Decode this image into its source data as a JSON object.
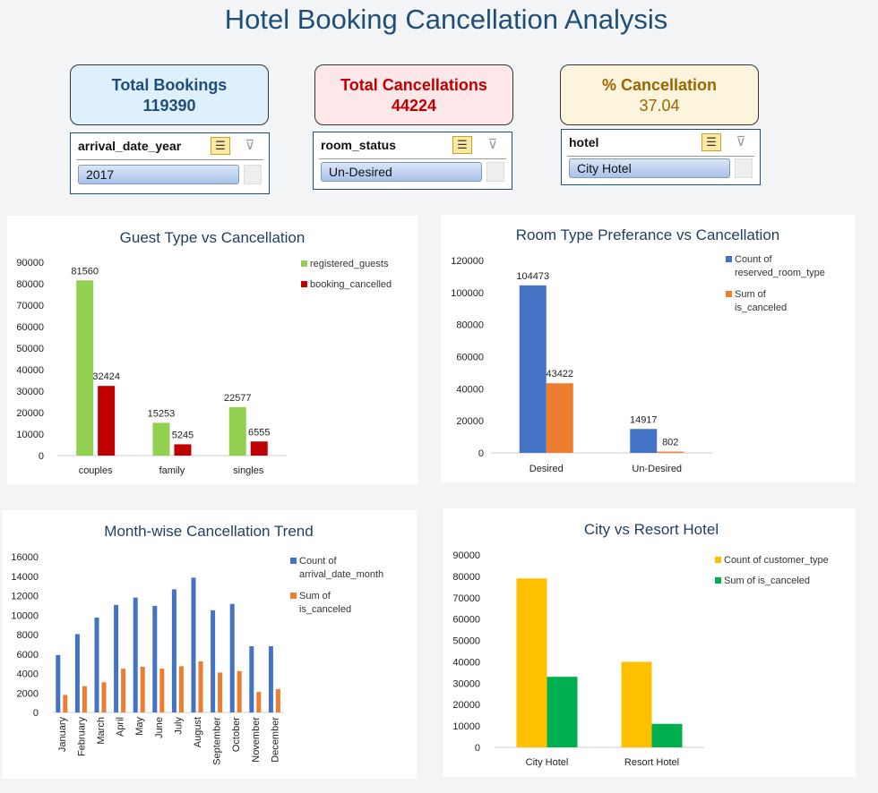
{
  "title": "Hotel Booking Cancellation Analysis",
  "kpis": {
    "total_bookings": {
      "label": "Total Bookings",
      "value": "119390",
      "color": "#1f4e79",
      "bg": "#ddf0fc"
    },
    "total_cancellations": {
      "label": "Total Cancellations",
      "value": "44224",
      "color": "#c00000",
      "bg": "#fde7e9"
    },
    "pct_cancellation": {
      "label": "% Cancellation",
      "value": "37.04",
      "color": "#9c6500",
      "bg": "#fdf4dd"
    }
  },
  "slicers": {
    "year": {
      "header": "arrival_date_year",
      "selected": "2017"
    },
    "room": {
      "header": "room_status",
      "selected": "Un-Desired"
    },
    "hotel": {
      "header": "hotel",
      "selected": "City Hotel"
    }
  },
  "icons": {
    "multiselect": "multi-select-icon",
    "clear_filter": "clear-filter-icon"
  },
  "chart_data": [
    {
      "id": "guest",
      "type": "bar",
      "title": "Guest Type vs Cancellation",
      "categories": [
        "couples",
        "family",
        "singles"
      ],
      "series": [
        {
          "name": "registered_guests",
          "values": [
            81560,
            15253,
            22577
          ],
          "color": "#92d050"
        },
        {
          "name": "booking_cancelled",
          "values": [
            32424,
            5245,
            6555
          ],
          "color": "#c00000"
        }
      ],
      "ylim": [
        0,
        90000
      ],
      "ticks": [
        "0",
        "10000",
        "20000",
        "30000",
        "40000",
        "50000",
        "60000",
        "70000",
        "80000",
        "90000"
      ],
      "data_labels": true,
      "legend": "top-right",
      "grid": false
    },
    {
      "id": "room",
      "type": "bar",
      "title": "Room Type Preferance vs Cancellation",
      "categories": [
        "Desired",
        "Un-Desired"
      ],
      "series": [
        {
          "name": "Count of reserved_room_type",
          "values": [
            104473,
            14917
          ],
          "color": "#4472c4"
        },
        {
          "name": "Sum of is_canceled",
          "values": [
            43422,
            802
          ],
          "color": "#ed7d31"
        }
      ],
      "ylim": [
        0,
        120000
      ],
      "ticks": [
        "0",
        "20000",
        "40000",
        "60000",
        "80000",
        "100000",
        "120000"
      ],
      "data_labels": true,
      "legend": "top-right",
      "grid": false
    },
    {
      "id": "month",
      "type": "bar",
      "title": "Month-wise Cancellation Trend",
      "categories": [
        "January",
        "February",
        "March",
        "April",
        "May",
        "June",
        "July",
        "August",
        "September",
        "October",
        "November",
        "December"
      ],
      "series": [
        {
          "name": "Count of arrival_date_month",
          "values": [
            5900,
            8050,
            9750,
            11050,
            11800,
            10950,
            12650,
            13850,
            10500,
            11150,
            6800,
            6800
          ],
          "color": "#4472c4"
        },
        {
          "name": "Sum of is_canceled",
          "values": [
            1800,
            2700,
            3100,
            4500,
            4700,
            4500,
            4750,
            5250,
            4100,
            4250,
            2100,
            2400
          ],
          "color": "#ed7d31"
        }
      ],
      "ylim": [
        0,
        16000
      ],
      "ticks": [
        "0",
        "2000",
        "4000",
        "6000",
        "8000",
        "10000",
        "12000",
        "14000",
        "16000"
      ],
      "data_labels": false,
      "legend": "top-right",
      "grid": false
    },
    {
      "id": "hotel",
      "type": "bar",
      "title": "City vs Resort Hotel",
      "categories": [
        "City Hotel",
        "Resort Hotel"
      ],
      "series": [
        {
          "name": "Count of customer_type",
          "values": [
            79000,
            40000
          ],
          "color": "#ffc000"
        },
        {
          "name": "Sum of is_canceled",
          "values": [
            33000,
            11000
          ],
          "color": "#00b050"
        }
      ],
      "ylim": [
        0,
        90000
      ],
      "ticks": [
        "0",
        "10000",
        "20000",
        "30000",
        "40000",
        "50000",
        "60000",
        "70000",
        "80000",
        "90000"
      ],
      "data_labels": false,
      "legend": "top-right",
      "grid": false
    }
  ]
}
